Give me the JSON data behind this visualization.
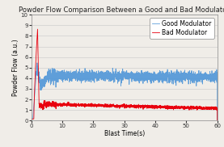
{
  "title": "Powder Flow Comparison Between a Good and Bad Modulator",
  "xlabel": "Blast Time(s)",
  "ylabel": "Powder Flow (a.u.)",
  "xlim": [
    0,
    60
  ],
  "ylim": [
    0,
    10
  ],
  "yticks": [
    0,
    1,
    2,
    3,
    4,
    5,
    6,
    7,
    8,
    9,
    10
  ],
  "xticks": [
    0,
    10,
    20,
    30,
    40,
    50,
    60
  ],
  "bad_color": "#e8000e",
  "good_color": "#4f96d8",
  "bad_label": "Bad Modulator",
  "good_label": "Good Modulator",
  "title_fontsize": 6.0,
  "axis_label_fontsize": 5.5,
  "tick_fontsize": 5.0,
  "legend_fontsize": 5.5,
  "bg_color": "#f0ede8"
}
